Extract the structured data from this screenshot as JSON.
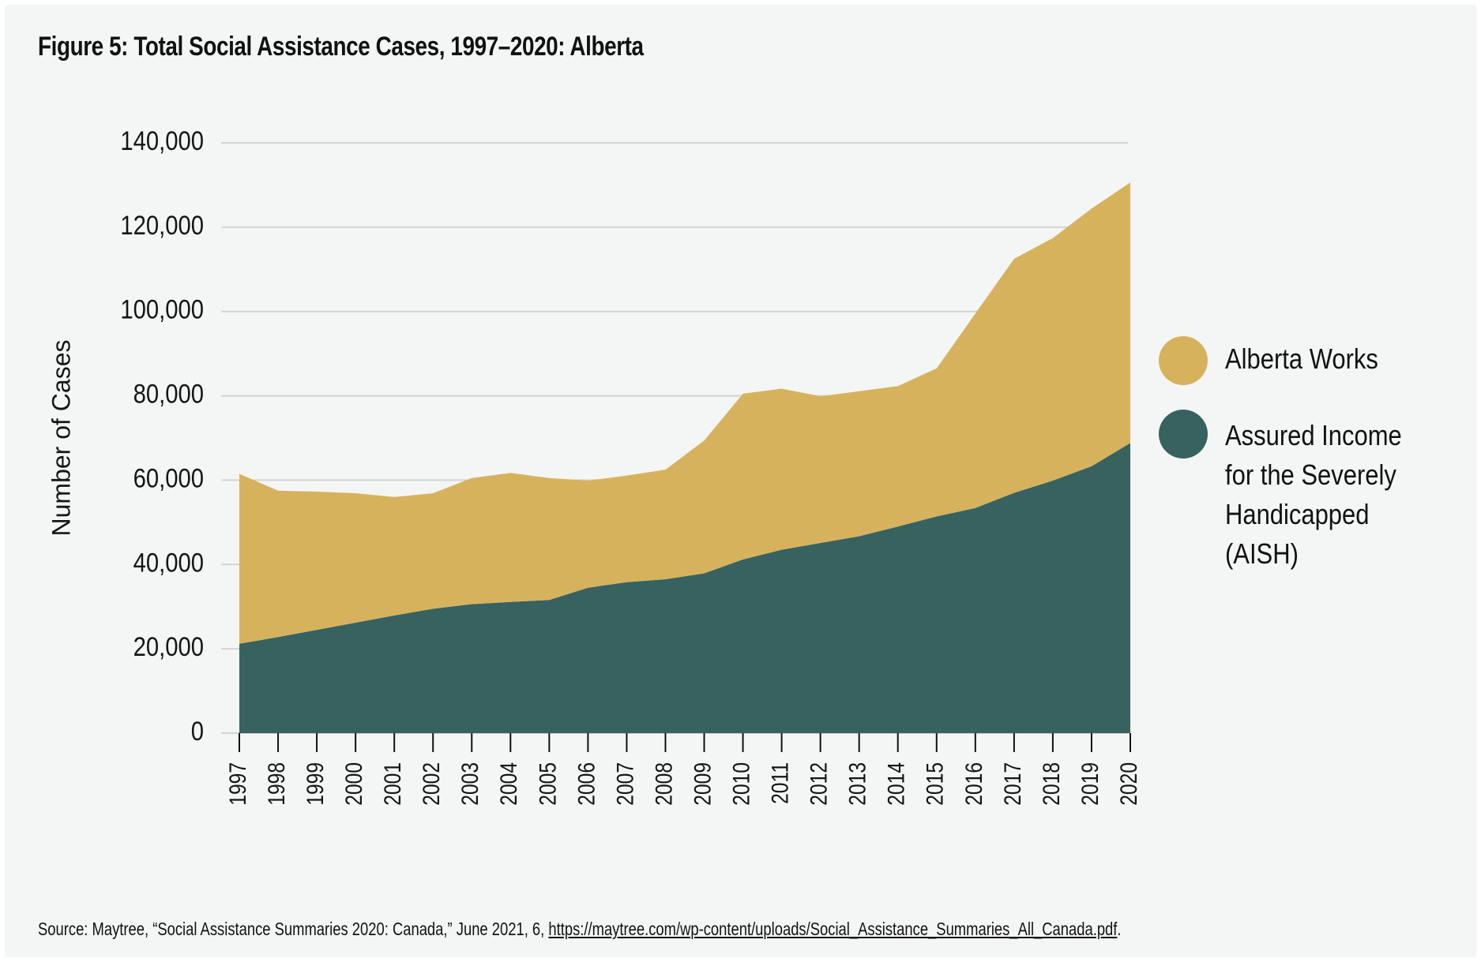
{
  "figure": {
    "title": "Figure 5: Total Social Assistance Cases, 1997–2020: Alberta",
    "source_prefix": "Source: Maytree, “Social Assistance Summaries 2020: Canada,” June 2021, 6, ",
    "source_link": "https://maytree.com/wp-content/uploads/Social_Assistance_Summaries_All_Canada.pdf",
    "source_suffix": "."
  },
  "chart_data": {
    "type": "area",
    "stacked": true,
    "title": "Figure 5: Total Social Assistance Cases, 1997–2020: Alberta",
    "xlabel": "",
    "ylabel": "Number of Cases",
    "ylim": [
      0,
      140000
    ],
    "yticks": [
      0,
      20000,
      40000,
      60000,
      80000,
      100000,
      120000,
      140000
    ],
    "ytick_labels": [
      "0",
      "20,000",
      "40,000",
      "60,000",
      "80,000",
      "100,000",
      "120,000",
      "140,000"
    ],
    "grid": "horizontal",
    "legend_position": "right",
    "categories": [
      "1997",
      "1998",
      "1999",
      "2000",
      "2001",
      "2002",
      "2003",
      "2004",
      "2005",
      "2006",
      "2007",
      "2008",
      "2009",
      "2010",
      "2011",
      "2012",
      "2013",
      "2014",
      "2015",
      "2016",
      "2017",
      "2018",
      "2019",
      "2020"
    ],
    "series": [
      {
        "name": "Assured Income for the Severely Handicapped (AISH)",
        "legend_label": "Assured Income\nfor the Severely\nHandicapped (AISH)",
        "color": "#386260",
        "values": [
          21200,
          22800,
          24500,
          26200,
          27900,
          29500,
          30600,
          31100,
          31600,
          34500,
          35800,
          36500,
          37900,
          41200,
          43500,
          45100,
          46700,
          49000,
          51400,
          53400,
          57000,
          59900,
          63300,
          68800
        ]
      },
      {
        "name": "Alberta Works",
        "legend_label": "Alberta Works",
        "color": "#d7b25d",
        "values": [
          40300,
          34700,
          32800,
          30700,
          28100,
          27400,
          29900,
          30600,
          28900,
          25400,
          25300,
          26000,
          31500,
          39300,
          38200,
          34800,
          34400,
          33300,
          35100,
          46100,
          55500,
          57500,
          61100,
          61800
        ]
      }
    ],
    "totals": [
      61500,
      57500,
      57300,
      56900,
      56000,
      56900,
      60500,
      61700,
      60500,
      59900,
      61100,
      62500,
      69400,
      80500,
      81700,
      79900,
      81100,
      82300,
      86500,
      99500,
      112500,
      117400,
      124400,
      130600
    ]
  },
  "colors": {
    "background": "#f4f6f5",
    "gridline": "#d3d3d3",
    "axis": "#111111"
  }
}
